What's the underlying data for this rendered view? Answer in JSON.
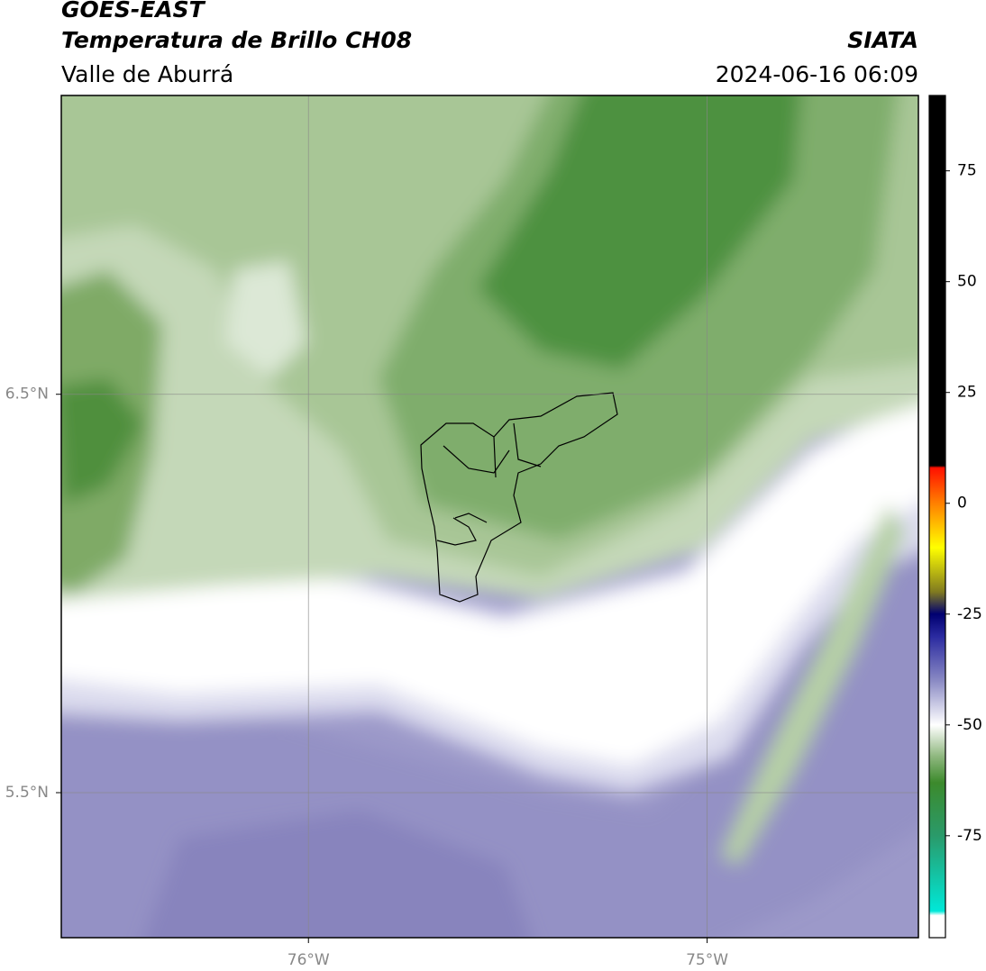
{
  "chart_data": {
    "type": "map",
    "title": "GOES-EAST",
    "subtitle": "Temperatura de Brillo CH08",
    "region": "Valle de Aburrá",
    "source": "SIATA",
    "datetime": "2024-06-16 06:09",
    "xlim": [
      -76.62,
      -74.47
    ],
    "ylim": [
      5.136,
      7.25
    ],
    "xticks": [
      {
        "value": -76,
        "label": "76°W"
      },
      {
        "value": -75,
        "label": "75°W"
      }
    ],
    "yticks": [
      {
        "value": 6.5,
        "label": "6.5°N"
      },
      {
        "value": 5.5,
        "label": "5.5°N"
      }
    ],
    "grid": true,
    "colorbar": {
      "lim": [
        -98,
        92
      ],
      "ticks": [
        75,
        50,
        25,
        0,
        -25,
        -50,
        -75
      ],
      "stops": [
        {
          "value": 92,
          "color": "#000000"
        },
        {
          "value": 8.5,
          "color": "#000000"
        },
        {
          "value": 8,
          "color": "#ff1000"
        },
        {
          "value": 0,
          "color": "#ff8000"
        },
        {
          "value": -10,
          "color": "#ffff00"
        },
        {
          "value": -20,
          "color": "#807a20"
        },
        {
          "value": -25,
          "color": "#000070"
        },
        {
          "value": -30,
          "color": "#2a2aa0"
        },
        {
          "value": -40,
          "color": "#8a8ac4"
        },
        {
          "value": -50,
          "color": "#ffffff"
        },
        {
          "value": -57,
          "color": "#90b880"
        },
        {
          "value": -63,
          "color": "#3c8a2c"
        },
        {
          "value": -75,
          "color": "#2a9a6a"
        },
        {
          "value": -92,
          "color": "#00e8d8"
        },
        {
          "value": -93,
          "color": "#ffffff"
        },
        {
          "value": -98,
          "color": "#ffffff"
        }
      ]
    }
  }
}
